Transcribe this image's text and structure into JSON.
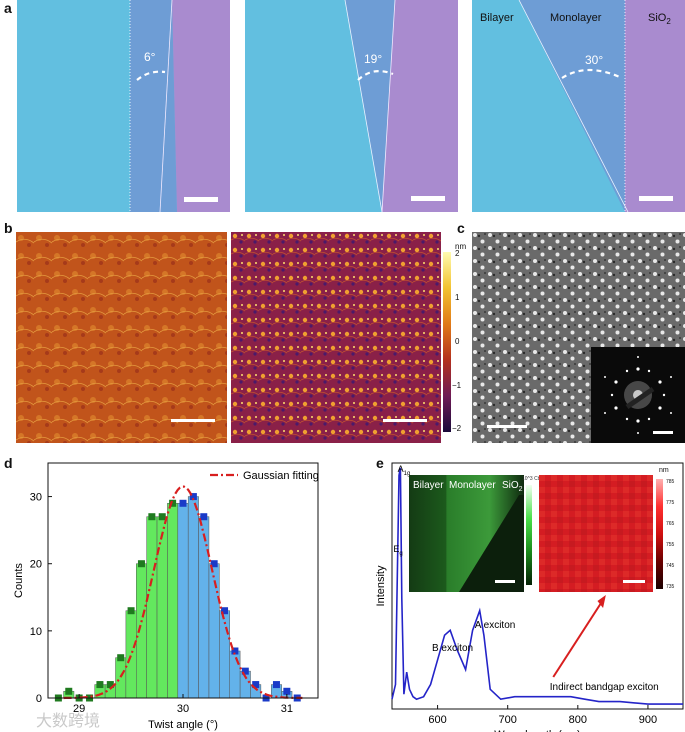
{
  "panels": {
    "a": {
      "label": "a",
      "images": [
        {
          "angle": "6°"
        },
        {
          "angle": "19°"
        },
        {
          "angle": "30°",
          "labels": {
            "bilayer": "Bilayer",
            "monolayer": "Monolayer",
            "substrate": "SiO",
            "substrate_sub": "2"
          }
        }
      ],
      "colors": {
        "bilayer": "#63bfe0",
        "monolayer": "#6f9bd6",
        "substrate": "#a78ad0"
      }
    },
    "b": {
      "label": "b",
      "colorbar_unit": "nm",
      "colorbar_ticks": [
        "2",
        "1",
        "0",
        "−1",
        "−2"
      ]
    },
    "c": {
      "label": "c"
    },
    "d": {
      "label": "d",
      "chart_data": {
        "type": "bar",
        "xlabel": "Twist angle (°)",
        "ylabel": "Counts",
        "xlim": [
          28.7,
          31.3
        ],
        "ylim": [
          0,
          35
        ],
        "xticks": [
          "29",
          "30",
          "31"
        ],
        "yticks": [
          "0",
          "10",
          "20",
          "30"
        ],
        "legend": "Gaussian fitting",
        "bin_width": 0.1,
        "bin_centers": [
          28.8,
          28.9,
          29.0,
          29.1,
          29.2,
          29.3,
          29.4,
          29.5,
          29.6,
          29.7,
          29.8,
          29.9,
          30.0,
          30.1,
          30.2,
          30.3,
          30.4,
          30.5,
          30.6,
          30.7,
          30.8,
          30.9,
          31.0,
          31.1
        ],
        "counts": [
          0,
          1,
          0,
          0,
          2,
          2,
          6,
          13,
          20,
          27,
          27,
          29,
          29,
          30,
          27,
          20,
          13,
          7,
          4,
          2,
          0,
          2,
          1,
          0
        ],
        "bin_colors": [
          "#63e85e",
          "#63e85e",
          "#63e85e",
          "#63e85e",
          "#63e85e",
          "#63e85e",
          "#63e85e",
          "#63e85e",
          "#63e85e",
          "#63e85e",
          "#63e85e",
          "#63e85e",
          "#63b2ea",
          "#63b2ea",
          "#63b2ea",
          "#63b2ea",
          "#63b2ea",
          "#63b2ea",
          "#63b2ea",
          "#63b2ea",
          "#63b2ea",
          "#63b2ea",
          "#63b2ea",
          "#63b2ea"
        ],
        "gaussian": {
          "mean": 30.0,
          "sigma": 0.28,
          "amplitude": 31.5,
          "color": "#d81f1f"
        }
      }
    },
    "e": {
      "label": "e",
      "chart_data": {
        "type": "line",
        "xlabel": "Wave length (nm)",
        "ylabel": "Intensity",
        "xlim": [
          535,
          950
        ],
        "xticks": [
          "600",
          "700",
          "800",
          "900"
        ],
        "annotations": [
          "A",
          "1g",
          "E",
          "g",
          "B exciton",
          "A exciton",
          "Indirect bandgap exciton"
        ],
        "x": [
          535,
          540,
          545,
          547,
          549,
          552,
          556,
          560,
          565,
          570,
          580,
          590,
          600,
          610,
          618,
          628,
          640,
          650,
          660,
          666,
          675,
          690,
          710,
          730,
          750,
          770,
          790,
          810,
          830,
          860,
          900,
          950
        ],
        "y": [
          4,
          10,
          95,
          98,
          45,
          6,
          15,
          8,
          5,
          4,
          5,
          10,
          20,
          30,
          32,
          24,
          16,
          32,
          40,
          30,
          8,
          4,
          5,
          5,
          5,
          5,
          5,
          4,
          3,
          3,
          2,
          2
        ],
        "line_color": "#2424c8",
        "insets": {
          "left": {
            "labels": [
              "Bilayer",
              "Monolayer",
              "SiO",
              "2"
            ],
            "colorbar_label": "10^3 Cts"
          },
          "right": {
            "colorbar_unit": "nm",
            "colorbar_ticks": [
              "785",
              "775",
              "765",
              "755",
              "745",
              "735"
            ]
          }
        }
      }
    }
  },
  "watermark": "大数跨境"
}
